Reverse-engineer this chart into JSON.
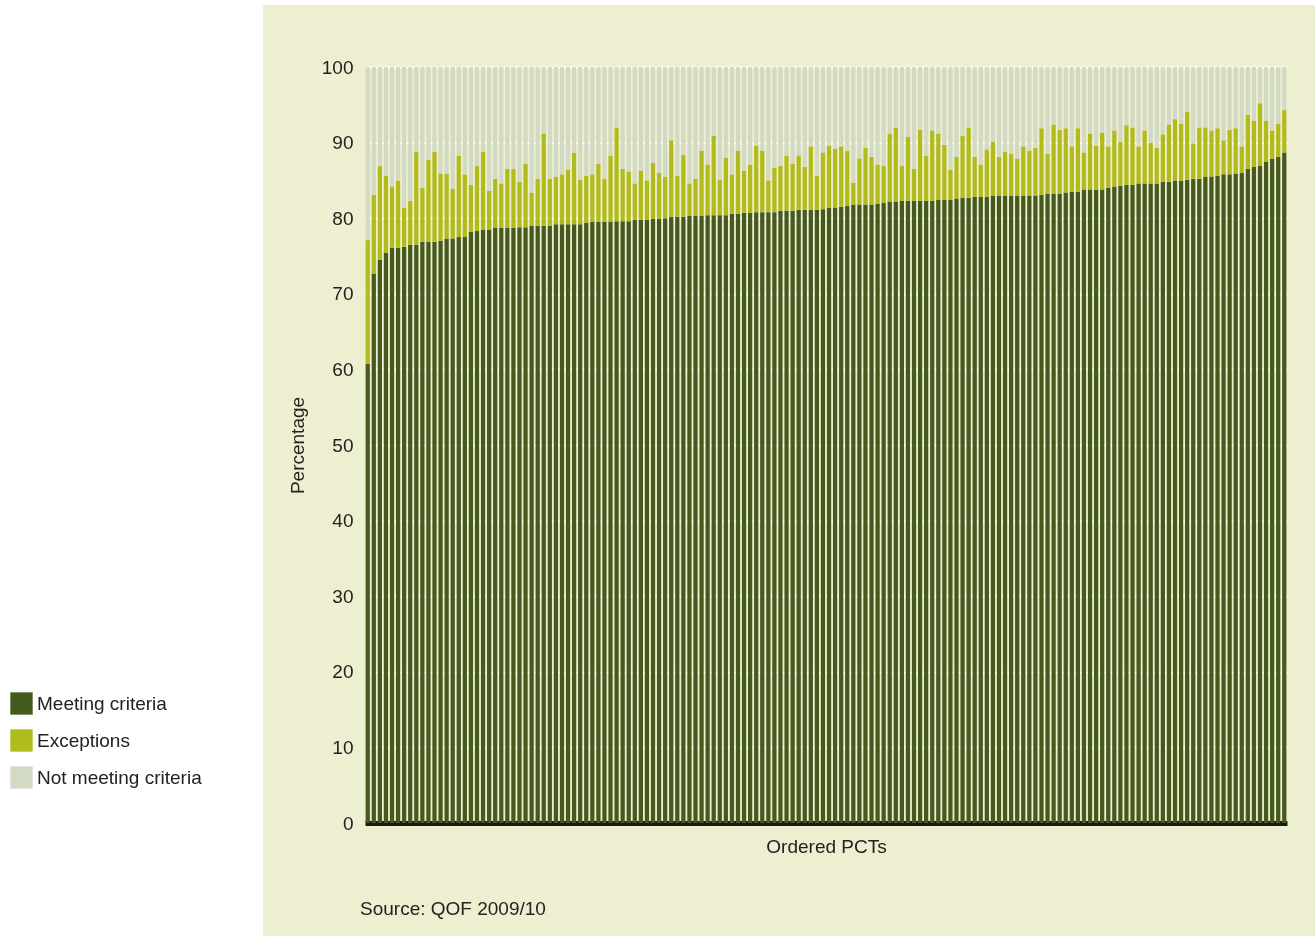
{
  "chart_data": {
    "type": "bar",
    "stacked": true,
    "categories": [
      null,
      null,
      null,
      null,
      null,
      null,
      null,
      null,
      null,
      null,
      null,
      null,
      null,
      null,
      null,
      null,
      null,
      null,
      null,
      null,
      null,
      null,
      null,
      null,
      null,
      null,
      null,
      null,
      null,
      null,
      null,
      null,
      null,
      null,
      null,
      null,
      null,
      null,
      null,
      null,
      null,
      null,
      null,
      null,
      null,
      null,
      null,
      null,
      null,
      null,
      null,
      null,
      null,
      null,
      null,
      null,
      null,
      null,
      null,
      null,
      null,
      null,
      null,
      null,
      null,
      null,
      null,
      null,
      null,
      null,
      null,
      null,
      null,
      null,
      null,
      null,
      null,
      null,
      null,
      null,
      null,
      null,
      null,
      null,
      null,
      null,
      null,
      null,
      null,
      null,
      null,
      null,
      null,
      null,
      null,
      null,
      null,
      null,
      null,
      null,
      null,
      null,
      null,
      null,
      null,
      null,
      null,
      null,
      null,
      null,
      null,
      null,
      null,
      null,
      null,
      null,
      null,
      null,
      null,
      null,
      null,
      null,
      null,
      null,
      null,
      null,
      null,
      null,
      null,
      null,
      null,
      null,
      null,
      null,
      null,
      null,
      null,
      null,
      null,
      null,
      null,
      null,
      null,
      null,
      null,
      null,
      null,
      null,
      null,
      null,
      null,
      null
    ],
    "series": [
      {
        "name": "Meeting criteria",
        "color": "#465a20",
        "values": [
          60.7,
          72.7,
          74.5,
          75.4,
          76.1,
          76.1,
          76.2,
          76.5,
          76.5,
          76.9,
          76.9,
          76.9,
          77.0,
          77.3,
          77.3,
          77.5,
          77.5,
          78.2,
          78.3,
          78.5,
          78.5,
          78.7,
          78.7,
          78.7,
          78.7,
          78.8,
          78.8,
          79.0,
          79.0,
          79.0,
          79.0,
          79.2,
          79.2,
          79.2,
          79.2,
          79.2,
          79.4,
          79.5,
          79.5,
          79.5,
          79.5,
          79.6,
          79.6,
          79.6,
          79.8,
          79.8,
          79.8,
          79.9,
          79.9,
          80.0,
          80.2,
          80.2,
          80.2,
          80.3,
          80.3,
          80.3,
          80.4,
          80.4,
          80.4,
          80.4,
          80.6,
          80.6,
          80.7,
          80.7,
          80.8,
          80.8,
          80.8,
          80.8,
          81.0,
          81.0,
          81.0,
          81.1,
          81.1,
          81.1,
          81.1,
          81.2,
          81.4,
          81.4,
          81.5,
          81.6,
          81.8,
          81.8,
          81.8,
          81.8,
          81.9,
          82.0,
          82.2,
          82.2,
          82.3,
          82.3,
          82.3,
          82.3,
          82.3,
          82.3,
          82.4,
          82.4,
          82.4,
          82.6,
          82.7,
          82.7,
          82.8,
          82.8,
          82.8,
          83.0,
          83.0,
          83.0,
          83.0,
          83.0,
          83.0,
          83.0,
          83.0,
          83.1,
          83.2,
          83.2,
          83.2,
          83.4,
          83.5,
          83.5,
          83.8,
          83.8,
          83.8,
          83.8,
          84.0,
          84.2,
          84.3,
          84.4,
          84.4,
          84.6,
          84.6,
          84.6,
          84.6,
          84.8,
          84.8,
          85.0,
          85.0,
          85.1,
          85.2,
          85.2,
          85.5,
          85.5,
          85.6,
          85.8,
          85.8,
          85.9,
          86.0,
          86.5,
          86.8,
          86.9,
          87.5,
          87.9,
          88.1,
          88.7
        ]
      },
      {
        "name": "Exceptions",
        "color": "#b2bb1c",
        "values": [
          16.4,
          10.4,
          12.4,
          10.2,
          8.1,
          8.9,
          5.2,
          5.8,
          12.3,
          7.1,
          10.8,
          11.9,
          8.9,
          8.6,
          6.6,
          10.8,
          8.3,
          6.2,
          8.6,
          10.3,
          5.1,
          6.5,
          5.9,
          7.8,
          7.8,
          6.0,
          8.4,
          4.4,
          6.2,
          12.2,
          6.2,
          6.3,
          6.6,
          7.2,
          9.5,
          5.9,
          6.2,
          6.3,
          7.7,
          5.7,
          8.8,
          12.4,
          6.9,
          6.6,
          4.8,
          6.5,
          5.2,
          7.4,
          6.1,
          5.5,
          10.1,
          5.4,
          8.2,
          4.3,
          4.9,
          8.6,
          6.7,
          10.5,
          4.7,
          7.6,
          5.2,
          8.3,
          5.6,
          6.4,
          8.8,
          8.1,
          4.2,
          5.9,
          5.9,
          7.3,
          6.2,
          7.2,
          5.7,
          8.4,
          4.5,
          7.5,
          8.2,
          7.8,
          8.0,
          7.3,
          2.9,
          6.1,
          7.5,
          6.3,
          5.2,
          4.9,
          9.0,
          9.8,
          4.6,
          8.5,
          4.2,
          9.4,
          6.0,
          9.3,
          8.8,
          7.3,
          4.0,
          5.5,
          8.2,
          9.3,
          5.3,
          4.3,
          6.3,
          7.1,
          5.1,
          5.8,
          5.5,
          4.9,
          6.5,
          5.9,
          6.3,
          8.8,
          5.3,
          9.2,
          8.5,
          8.5,
          6.0,
          8.4,
          4.9,
          7.4,
          5.8,
          7.5,
          5.5,
          7.4,
          5.8,
          7.9,
          7.6,
          4.9,
          7.0,
          5.4,
          4.7,
          6.3,
          7.6,
          8.1,
          7.5,
          9.0,
          4.7,
          6.8,
          6.5,
          6.1,
          6.3,
          4.5,
          5.9,
          6.0,
          3.5,
          7.2,
          6.1,
          8.3,
          5.4,
          3.7,
          4.4,
          5.6
        ]
      },
      {
        "name": "Not meeting criteria",
        "color": "#d2dac4",
        "values": [
          22.9,
          16.9,
          13.1,
          14.4,
          15.8,
          15.0,
          18.6,
          17.7,
          11.2,
          16.0,
          12.3,
          11.2,
          14.1,
          14.1,
          16.1,
          11.7,
          14.2,
          15.6,
          13.1,
          11.2,
          16.4,
          14.8,
          15.4,
          13.5,
          13.5,
          15.2,
          12.8,
          16.6,
          14.8,
          8.8,
          14.8,
          14.5,
          14.2,
          13.6,
          11.3,
          14.9,
          14.4,
          14.2,
          12.8,
          14.8,
          11.7,
          8.0,
          13.5,
          13.8,
          15.4,
          13.7,
          15.0,
          12.7,
          14.0,
          14.5,
          9.7,
          14.4,
          11.6,
          15.4,
          14.8,
          11.1,
          12.9,
          9.1,
          14.9,
          12.0,
          14.2,
          11.1,
          13.7,
          12.9,
          10.4,
          11.1,
          15.0,
          13.3,
          13.1,
          11.7,
          12.8,
          11.7,
          13.2,
          10.5,
          14.4,
          11.3,
          10.4,
          10.8,
          10.5,
          11.1,
          15.3,
          12.1,
          10.7,
          11.9,
          12.9,
          13.1,
          8.8,
          8.0,
          13.1,
          9.2,
          13.5,
          8.3,
          11.7,
          8.4,
          8.8,
          10.3,
          13.6,
          11.9,
          9.1,
          8.0,
          11.9,
          12.9,
          10.9,
          9.9,
          11.9,
          11.2,
          11.5,
          12.1,
          10.5,
          11.1,
          10.7,
          8.1,
          11.5,
          7.6,
          8.3,
          8.1,
          10.5,
          8.1,
          11.3,
          8.8,
          10.4,
          8.7,
          10.5,
          8.4,
          9.9,
          7.7,
          8.0,
          10.5,
          8.4,
          10.0,
          10.7,
          8.9,
          7.6,
          6.9,
          7.5,
          5.9,
          10.1,
          8.0,
          8.0,
          8.4,
          8.1,
          9.7,
          8.3,
          8.1,
          10.5,
          6.3,
          7.1,
          4.8,
          7.1,
          8.4,
          7.5,
          5.7
        ]
      }
    ],
    "ylim": [
      0,
      100
    ],
    "yticks": [
      0,
      10,
      20,
      30,
      40,
      50,
      60,
      70,
      80,
      90,
      100
    ],
    "grid": "y",
    "legend": "left",
    "xlabel": "Ordered PCTs",
    "ylabel": "Percentage",
    "annotations": [
      "Source: QOF 2009/10"
    ]
  }
}
